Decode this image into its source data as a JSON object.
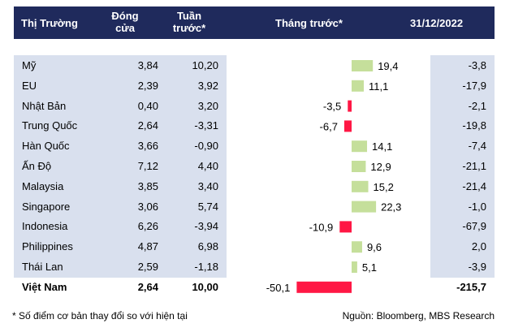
{
  "header": {
    "market": "Thị Trường",
    "close_line1": "Đóng",
    "close_line2": "cửa",
    "week_line1": "Tuần",
    "week_line2": "trước*",
    "month": "Tháng trước*",
    "ytd": "31/12/2022"
  },
  "chart_data": {
    "type": "table",
    "columns": [
      "Thị Trường",
      "Đóng cửa",
      "Tuần trước*",
      "Tháng trước*",
      "31/12/2022"
    ],
    "rows": [
      {
        "market": "Mỹ",
        "close": "3,84",
        "week": "10,20",
        "month": 19.4,
        "month_label": "19,4",
        "ytd": "-3,8"
      },
      {
        "market": "EU",
        "close": "2,39",
        "week": "3,92",
        "month": 11.1,
        "month_label": "11,1",
        "ytd": "-17,9"
      },
      {
        "market": "Nhật Bản",
        "close": "0,40",
        "week": "3,20",
        "month": -3.5,
        "month_label": "-3,5",
        "ytd": "-2,1"
      },
      {
        "market": "Trung Quốc",
        "close": "2,64",
        "week": "-3,31",
        "month": -6.7,
        "month_label": "-6,7",
        "ytd": "-19,8"
      },
      {
        "market": "Hàn Quốc",
        "close": "3,66",
        "week": "-0,90",
        "month": 14.1,
        "month_label": "14,1",
        "ytd": "-7,4"
      },
      {
        "market": "Ấn Độ",
        "close": "7,12",
        "week": "4,40",
        "month": 12.9,
        "month_label": "12,9",
        "ytd": "-21,1"
      },
      {
        "market": "Malaysia",
        "close": "3,85",
        "week": "3,40",
        "month": 15.2,
        "month_label": "15,2",
        "ytd": "-21,4"
      },
      {
        "market": "Singapore",
        "close": "3,06",
        "week": "5,74",
        "month": 22.3,
        "month_label": "22,3",
        "ytd": "-1,0"
      },
      {
        "market": "Indonesia",
        "close": "6,26",
        "week": "-3,94",
        "month": -10.9,
        "month_label": "-10,9",
        "ytd": "-67,9"
      },
      {
        "market": "Philippines",
        "close": "4,87",
        "week": "6,98",
        "month": 9.6,
        "month_label": "9,6",
        "ytd": "2,0"
      },
      {
        "market": "Thái Lan",
        "close": "2,59",
        "week": "-1,18",
        "month": 5.1,
        "month_label": "5,1",
        "ytd": "-3,9"
      },
      {
        "market": "Việt Nam",
        "close": "2,64",
        "week": "10,00",
        "month": -50.1,
        "month_label": "-50,1",
        "ytd": "-215,7",
        "bold": true
      }
    ],
    "colors": {
      "positive": "#c5df9b",
      "negative": "#ff1744",
      "header_bg": "#1f2a5c",
      "row_bg": "#d9e0ee"
    }
  },
  "footer": {
    "note": "* Số điểm cơ bản thay đổi so với hiện tại",
    "source": "Nguồn: Bloomberg, MBS Research"
  }
}
